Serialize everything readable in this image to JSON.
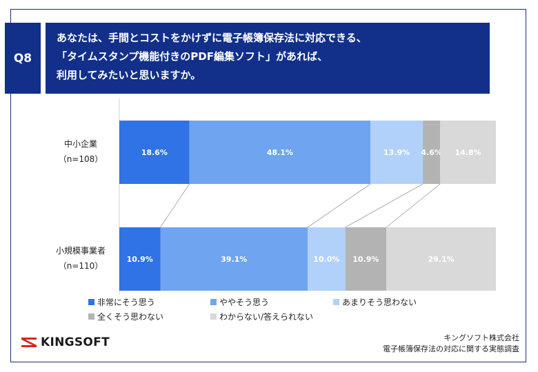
{
  "question": {
    "badge": "Q8",
    "lines": [
      "あなたは、手間とコストをかけずに電子帳簿保存法に対応できる、",
      "「タイムスタンプ機能付きのPDF編集ソフト」があれば、",
      "利用してみたいと思いますか。"
    ]
  },
  "chart_data": {
    "type": "bar",
    "orientation": "horizontal",
    "stacked": true,
    "unit": "%",
    "categories": [
      {
        "label": "中小企業",
        "n": "（n=108）"
      },
      {
        "label": "小規模事業者",
        "n": "（n=110）"
      }
    ],
    "series": [
      {
        "name": "非常にそう思う",
        "color": "#2f73e6",
        "values": [
          18.6,
          10.9
        ],
        "labels": [
          "18.6%",
          "10.9%"
        ],
        "label_color": "#ffffff"
      },
      {
        "name": "ややそう思う",
        "color": "#6fa4f0",
        "values": [
          48.1,
          39.1
        ],
        "labels": [
          "48.1%",
          "39.1%"
        ],
        "label_color": "#ffffff"
      },
      {
        "name": "あまりそう思わない",
        "color": "#b1d1fa",
        "values": [
          13.9,
          10.0
        ],
        "labels": [
          "13.9%",
          "10.0%"
        ],
        "label_color": "#ffffff"
      },
      {
        "name": "全くそう思わない",
        "color": "#b3b3b3",
        "values": [
          4.6,
          10.9
        ],
        "labels": [
          "4.6%",
          "10.9%"
        ],
        "label_color": "#ffffff"
      },
      {
        "name": "わからない/答えられない",
        "color": "#d9d9d9",
        "values": [
          14.8,
          29.1
        ],
        "labels": [
          "14.8%",
          "29.1%"
        ],
        "label_color": "#ffffff"
      }
    ],
    "xlim": [
      0,
      100
    ],
    "grid": false,
    "series_connectors": true,
    "legend_position": "bottom"
  },
  "logo": {
    "text": "KINGSOFT",
    "color": "#d7261c"
  },
  "footer": {
    "company": "キングソフト株式会社",
    "survey": "電子帳簿保存法の対応に関する実態調査"
  }
}
